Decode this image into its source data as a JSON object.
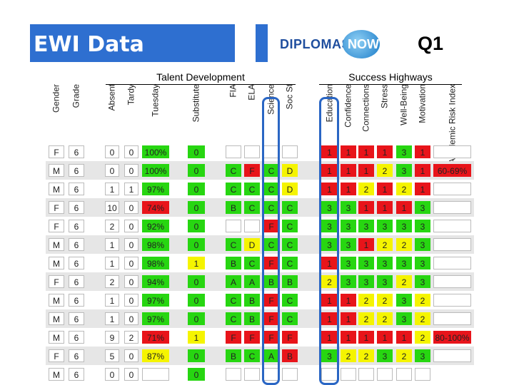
{
  "title": "EWI Data",
  "quarter": "Q1",
  "logo": {
    "text_left": "DIPLOMAS",
    "text_right": "NOW"
  },
  "sections": {
    "talent": "Talent Development",
    "success": "Success Highways"
  },
  "columns": [
    "Gender",
    "Grade",
    "Absent",
    "Tardy",
    "Tuesday",
    "Substitute",
    "FIA",
    "ELA",
    "Science",
    "Soc St",
    "Education",
    "Confidence",
    "Connections",
    "Stress",
    "Well-Being",
    "Motivation",
    "Academic Risk Index"
  ],
  "colors": {
    "red": "#e8141a",
    "green": "#27d611",
    "yellow": "#f5f400",
    "white": "#ffffff",
    "band": "#e6e6e6",
    "blue": "#2e6fd0"
  },
  "rows": [
    {
      "gender": "F",
      "grade": "6",
      "absent": "0",
      "tardy": "0",
      "attendance": "100%",
      "attendance_color": "green",
      "behavior": "0",
      "behavior_color": "green",
      "grades": [
        [
          "",
          "white"
        ],
        [
          "",
          "white"
        ],
        [
          "",
          "white"
        ],
        [
          "",
          "white"
        ]
      ],
      "success": [
        [
          "1",
          "red"
        ],
        [
          "1",
          "red"
        ],
        [
          "1",
          "red"
        ],
        [
          "1",
          "red"
        ],
        [
          "3",
          "green"
        ],
        [
          "1",
          "red"
        ]
      ],
      "risk": ""
    },
    {
      "gender": "M",
      "grade": "6",
      "absent": "0",
      "tardy": "0",
      "attendance": "100%",
      "attendance_color": "green",
      "behavior": "0",
      "behavior_color": "green",
      "grades": [
        [
          "C",
          "green"
        ],
        [
          "F",
          "red"
        ],
        [
          "C",
          "green"
        ],
        [
          "D",
          "yellow"
        ]
      ],
      "success": [
        [
          "1",
          "red"
        ],
        [
          "1",
          "red"
        ],
        [
          "1",
          "red"
        ],
        [
          "2",
          "yellow"
        ],
        [
          "3",
          "green"
        ],
        [
          "1",
          "red"
        ]
      ],
      "risk": "60-69%",
      "risk_color": "red"
    },
    {
      "gender": "M",
      "grade": "6",
      "absent": "1",
      "tardy": "1",
      "attendance": "97%",
      "attendance_color": "green",
      "behavior": "0",
      "behavior_color": "green",
      "grades": [
        [
          "C",
          "green"
        ],
        [
          "C",
          "green"
        ],
        [
          "C",
          "green"
        ],
        [
          "D",
          "yellow"
        ]
      ],
      "success": [
        [
          "1",
          "red"
        ],
        [
          "1",
          "red"
        ],
        [
          "2",
          "yellow"
        ],
        [
          "1",
          "red"
        ],
        [
          "2",
          "yellow"
        ],
        [
          "1",
          "red"
        ]
      ],
      "risk": ""
    },
    {
      "gender": "F",
      "grade": "6",
      "absent": "10",
      "tardy": "0",
      "attendance": "74%",
      "attendance_color": "red",
      "behavior": "0",
      "behavior_color": "green",
      "grades": [
        [
          "B",
          "green"
        ],
        [
          "C",
          "green"
        ],
        [
          "C",
          "green"
        ],
        [
          "C",
          "green"
        ]
      ],
      "success": [
        [
          "3",
          "green"
        ],
        [
          "3",
          "green"
        ],
        [
          "1",
          "red"
        ],
        [
          "1",
          "red"
        ],
        [
          "1",
          "red"
        ],
        [
          "3",
          "green"
        ]
      ],
      "risk": ""
    },
    {
      "gender": "F",
      "grade": "6",
      "absent": "2",
      "tardy": "0",
      "attendance": "92%",
      "attendance_color": "green",
      "behavior": "0",
      "behavior_color": "green",
      "grades": [
        [
          "",
          "white"
        ],
        [
          "",
          "white"
        ],
        [
          "F",
          "red"
        ],
        [
          "C",
          "green"
        ]
      ],
      "success": [
        [
          "3",
          "green"
        ],
        [
          "3",
          "green"
        ],
        [
          "3",
          "green"
        ],
        [
          "3",
          "green"
        ],
        [
          "3",
          "green"
        ],
        [
          "3",
          "green"
        ]
      ],
      "risk": ""
    },
    {
      "gender": "M",
      "grade": "6",
      "absent": "1",
      "tardy": "0",
      "attendance": "98%",
      "attendance_color": "green",
      "behavior": "0",
      "behavior_color": "green",
      "grades": [
        [
          "C",
          "green"
        ],
        [
          "D",
          "yellow"
        ],
        [
          "C",
          "green"
        ],
        [
          "C",
          "green"
        ]
      ],
      "success": [
        [
          "3",
          "green"
        ],
        [
          "3",
          "green"
        ],
        [
          "1",
          "red"
        ],
        [
          "2",
          "yellow"
        ],
        [
          "2",
          "yellow"
        ],
        [
          "3",
          "green"
        ]
      ],
      "risk": ""
    },
    {
      "gender": "M",
      "grade": "6",
      "absent": "1",
      "tardy": "0",
      "attendance": "98%",
      "attendance_color": "green",
      "behavior": "1",
      "behavior_color": "yellow",
      "grades": [
        [
          "B",
          "green"
        ],
        [
          "C",
          "green"
        ],
        [
          "F",
          "red"
        ],
        [
          "C",
          "green"
        ]
      ],
      "success": [
        [
          "1",
          "red"
        ],
        [
          "3",
          "green"
        ],
        [
          "3",
          "green"
        ],
        [
          "3",
          "green"
        ],
        [
          "3",
          "green"
        ],
        [
          "3",
          "green"
        ]
      ],
      "risk": ""
    },
    {
      "gender": "F",
      "grade": "6",
      "absent": "2",
      "tardy": "0",
      "attendance": "94%",
      "attendance_color": "green",
      "behavior": "0",
      "behavior_color": "green",
      "grades": [
        [
          "A",
          "green"
        ],
        [
          "A",
          "green"
        ],
        [
          "B",
          "green"
        ],
        [
          "B",
          "green"
        ]
      ],
      "success": [
        [
          "2",
          "yellow"
        ],
        [
          "3",
          "green"
        ],
        [
          "3",
          "green"
        ],
        [
          "3",
          "green"
        ],
        [
          "2",
          "yellow"
        ],
        [
          "3",
          "green"
        ]
      ],
      "risk": ""
    },
    {
      "gender": "M",
      "grade": "6",
      "absent": "1",
      "tardy": "0",
      "attendance": "97%",
      "attendance_color": "green",
      "behavior": "0",
      "behavior_color": "green",
      "grades": [
        [
          "C",
          "green"
        ],
        [
          "B",
          "green"
        ],
        [
          "F",
          "red"
        ],
        [
          "C",
          "green"
        ]
      ],
      "success": [
        [
          "1",
          "red"
        ],
        [
          "1",
          "red"
        ],
        [
          "2",
          "yellow"
        ],
        [
          "2",
          "yellow"
        ],
        [
          "3",
          "green"
        ],
        [
          "2",
          "yellow"
        ]
      ],
      "risk": ""
    },
    {
      "gender": "M",
      "grade": "6",
      "absent": "1",
      "tardy": "0",
      "attendance": "97%",
      "attendance_color": "green",
      "behavior": "0",
      "behavior_color": "green",
      "grades": [
        [
          "C",
          "green"
        ],
        [
          "B",
          "green"
        ],
        [
          "F",
          "red"
        ],
        [
          "C",
          "green"
        ]
      ],
      "success": [
        [
          "1",
          "red"
        ],
        [
          "1",
          "red"
        ],
        [
          "2",
          "yellow"
        ],
        [
          "2",
          "yellow"
        ],
        [
          "3",
          "green"
        ],
        [
          "2",
          "yellow"
        ]
      ],
      "risk": ""
    },
    {
      "gender": "M",
      "grade": "6",
      "absent": "9",
      "tardy": "2",
      "attendance": "71%",
      "attendance_color": "red",
      "behavior": "1",
      "behavior_color": "yellow",
      "grades": [
        [
          "F",
          "red"
        ],
        [
          "F",
          "red"
        ],
        [
          "F",
          "red"
        ],
        [
          "F",
          "red"
        ]
      ],
      "success": [
        [
          "1",
          "red"
        ],
        [
          "1",
          "red"
        ],
        [
          "1",
          "red"
        ],
        [
          "1",
          "red"
        ],
        [
          "1",
          "red"
        ],
        [
          "2",
          "yellow"
        ]
      ],
      "risk": "80-100%",
      "risk_color": "red"
    },
    {
      "gender": "F",
      "grade": "6",
      "absent": "5",
      "tardy": "0",
      "attendance": "87%",
      "attendance_color": "yellow",
      "behavior": "0",
      "behavior_color": "green",
      "grades": [
        [
          "B",
          "green"
        ],
        [
          "C",
          "green"
        ],
        [
          "A",
          "green"
        ],
        [
          "B",
          "red"
        ]
      ],
      "success": [
        [
          "3",
          "green"
        ],
        [
          "2",
          "yellow"
        ],
        [
          "2",
          "yellow"
        ],
        [
          "3",
          "green"
        ],
        [
          "2",
          "yellow"
        ],
        [
          "3",
          "green"
        ]
      ],
      "risk": ""
    },
    {
      "gender": "M",
      "grade": "6",
      "absent": "0",
      "tardy": "0",
      "attendance": "",
      "attendance_color": "white",
      "behavior": "0",
      "behavior_color": "green",
      "grades": [
        [
          "",
          "white"
        ],
        [
          "",
          "white"
        ],
        [
          "",
          "white"
        ],
        [
          "",
          "white"
        ]
      ],
      "success": [
        [
          "",
          "white"
        ],
        [
          "",
          "white"
        ],
        [
          "",
          "white"
        ],
        [
          "",
          "white"
        ],
        [
          "",
          "white"
        ],
        [
          "",
          "white"
        ]
      ],
      "risk": "",
      "noRisk": true
    }
  ]
}
